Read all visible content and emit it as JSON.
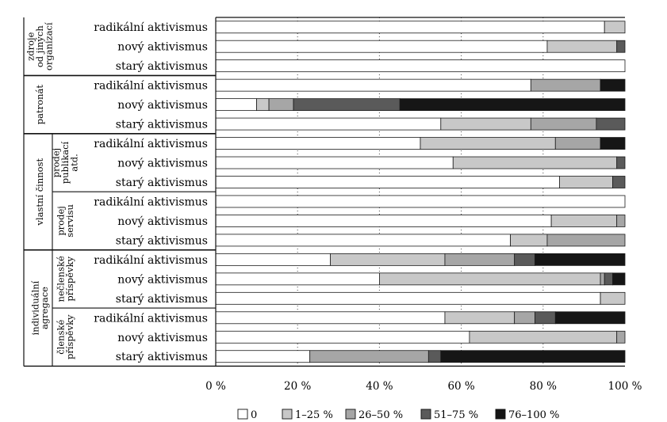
{
  "chart_data": {
    "type": "bar",
    "orientation": "horizontal",
    "stacked": true,
    "title": "",
    "xlabel": "",
    "ylabel": "",
    "xlim": [
      0,
      100
    ],
    "x_ticks": [
      "0 %",
      "20 %",
      "40 %",
      "60 %",
      "80 %",
      "100 %"
    ],
    "grid": "vertical dotted",
    "legend_position": "bottom",
    "colors": [
      "#ffffff",
      "#c8c8c8",
      "#a6a6a6",
      "#5a5a5a",
      "#161616"
    ],
    "legend": [
      "0",
      "1–25 %",
      "26–50 %",
      "51–75 %",
      "76–100 %"
    ],
    "groups": [
      {
        "label": [
          "zdroje",
          "od jiných",
          "organizací"
        ],
        "rows": [
          0,
          1,
          2
        ]
      },
      {
        "label": [
          "patronát"
        ],
        "rows": [
          3,
          4,
          5
        ]
      },
      {
        "label": [
          "vlastní činnost"
        ],
        "rows": [
          6,
          7,
          8,
          9,
          10,
          11
        ]
      },
      {
        "label": [
          "prodej",
          "publikací",
          "atd."
        ],
        "rows": [
          6,
          7,
          8
        ],
        "sub": true
      },
      {
        "label": [
          "prodej",
          "servisu"
        ],
        "rows": [
          9,
          10,
          11
        ],
        "sub": true
      },
      {
        "label": [
          "individuální",
          "agregace"
        ],
        "rows": [
          12,
          13,
          14,
          15,
          16,
          17
        ]
      },
      {
        "label": [
          "nečlenské",
          "příspěvky"
        ],
        "rows": [
          12,
          13,
          14
        ],
        "sub": true
      },
      {
        "label": [
          "členské",
          "příspěvky"
        ],
        "rows": [
          15,
          16,
          17
        ],
        "sub": true
      }
    ],
    "rows": [
      {
        "label": "radikální aktivismus",
        "values": [
          95,
          5,
          0,
          0,
          0
        ]
      },
      {
        "label": "nový aktivismus",
        "values": [
          81,
          17,
          0,
          2,
          0
        ]
      },
      {
        "label": "starý aktivismus",
        "values": [
          100,
          0,
          0,
          0,
          0
        ]
      },
      {
        "label": "radikální aktivismus",
        "values": [
          77,
          0,
          17,
          0,
          6
        ]
      },
      {
        "label": "nový aktivismus",
        "values": [
          10,
          3,
          6,
          26,
          55
        ]
      },
      {
        "label": "starý aktivismus",
        "values": [
          55,
          22,
          16,
          7,
          0
        ]
      },
      {
        "label": "radikální aktivismus",
        "values": [
          50,
          33,
          11,
          0,
          6
        ]
      },
      {
        "label": "nový aktivismus",
        "values": [
          58,
          40,
          0,
          2,
          0
        ]
      },
      {
        "label": "starý aktivismus",
        "values": [
          84,
          13,
          0,
          3,
          0
        ]
      },
      {
        "label": "radikální aktivismus",
        "values": [
          100,
          0,
          0,
          0,
          0
        ]
      },
      {
        "label": "nový aktivismus",
        "values": [
          82,
          16,
          2,
          0,
          0
        ]
      },
      {
        "label": "starý aktivismus",
        "values": [
          72,
          9,
          19,
          0,
          0
        ]
      },
      {
        "label": "radikální aktivismus",
        "values": [
          28,
          28,
          17,
          5,
          22
        ]
      },
      {
        "label": "nový aktivismus",
        "values": [
          40,
          54,
          1,
          2,
          3
        ]
      },
      {
        "label": "starý aktivismus",
        "values": [
          94,
          6,
          0,
          0,
          0
        ]
      },
      {
        "label": "radikální aktivismus",
        "values": [
          56,
          17,
          5,
          5,
          17
        ]
      },
      {
        "label": "nový aktivismus",
        "values": [
          62,
          36,
          2,
          0,
          0
        ]
      },
      {
        "label": "starý aktivismus",
        "values": [
          23,
          0,
          29,
          3,
          45
        ]
      }
    ]
  }
}
